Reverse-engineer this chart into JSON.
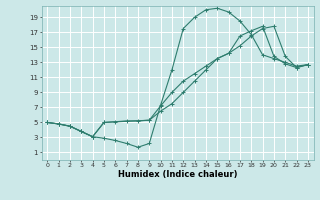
{
  "xlabel": "Humidex (Indice chaleur)",
  "bg_color": "#cce8e8",
  "line_color": "#2e7d6e",
  "grid_color": "#ffffff",
  "xlim": [
    -0.5,
    23.5
  ],
  "ylim": [
    0,
    20.5
  ],
  "xticks": [
    0,
    1,
    2,
    3,
    4,
    5,
    6,
    7,
    8,
    9,
    10,
    11,
    12,
    13,
    14,
    15,
    16,
    17,
    18,
    19,
    20,
    21,
    22,
    23
  ],
  "yticks": [
    1,
    3,
    5,
    7,
    9,
    11,
    13,
    15,
    17,
    19
  ],
  "line1_x": [
    0,
    1,
    2,
    3,
    4,
    5,
    6,
    7,
    8,
    9,
    10,
    11,
    12,
    13,
    14,
    15,
    16,
    17,
    18,
    19,
    20,
    21,
    22,
    23
  ],
  "line1_y": [
    5.0,
    4.8,
    4.5,
    3.8,
    3.1,
    2.9,
    2.6,
    2.2,
    1.7,
    2.2,
    7.3,
    12.0,
    17.5,
    19.0,
    20.0,
    20.2,
    19.7,
    18.5,
    16.7,
    14.0,
    13.5,
    13.0,
    12.5,
    12.7
  ],
  "line2_x": [
    0,
    1,
    2,
    3,
    4,
    5,
    6,
    7,
    8,
    9,
    10,
    11,
    12,
    13,
    14,
    15,
    16,
    17,
    18,
    19,
    20,
    21,
    22,
    23
  ],
  "line2_y": [
    5.0,
    4.8,
    4.5,
    3.8,
    3.1,
    5.0,
    5.1,
    5.2,
    5.2,
    5.3,
    7.2,
    9.0,
    10.5,
    11.5,
    12.5,
    13.5,
    14.2,
    16.5,
    17.2,
    17.8,
    13.8,
    12.8,
    12.3,
    12.7
  ],
  "line3_x": [
    0,
    1,
    2,
    3,
    4,
    5,
    9,
    10,
    11,
    12,
    13,
    14,
    15,
    16,
    17,
    18,
    19,
    20,
    21,
    22,
    23
  ],
  "line3_y": [
    5.0,
    4.8,
    4.5,
    3.8,
    3.1,
    5.0,
    5.3,
    6.5,
    7.5,
    9.0,
    10.5,
    12.0,
    13.5,
    14.2,
    15.2,
    16.5,
    17.5,
    17.8,
    13.8,
    12.3,
    12.7
  ]
}
